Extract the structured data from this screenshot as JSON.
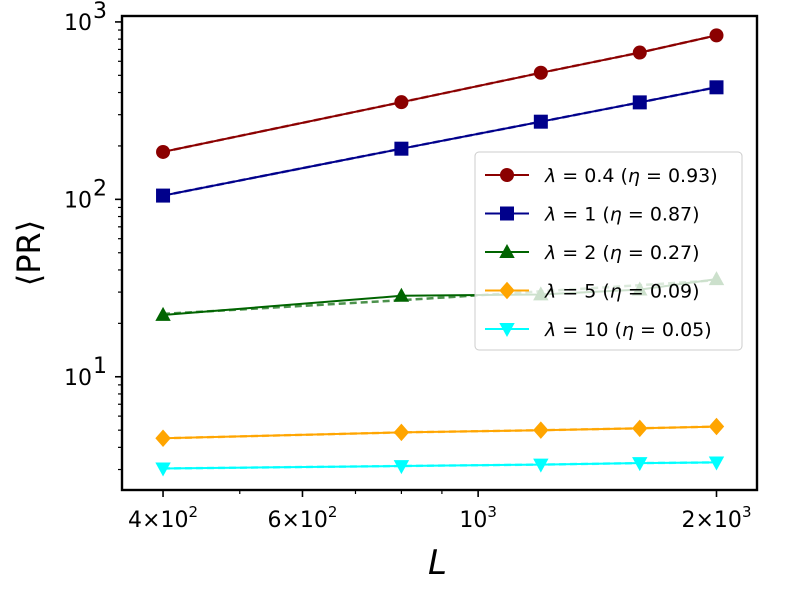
{
  "chart_data": {
    "type": "line",
    "xscale": "log",
    "yscale": "log",
    "xlabel": "L",
    "ylabel": "⟨PR⟩",
    "xlim": [
      355,
      2250
    ],
    "ylim": [
      2.3,
      1080
    ],
    "x_ticks": [
      {
        "value": 400,
        "mant": "4",
        "exp": "2"
      },
      {
        "value": 600,
        "mant": "6",
        "exp": "2"
      },
      {
        "value": 1000,
        "mant": "",
        "exp": "3"
      },
      {
        "value": 2000,
        "mant": "2",
        "exp": "3"
      }
    ],
    "y_ticks": [
      {
        "value": 10,
        "exp": "1"
      },
      {
        "value": 100,
        "exp": "2"
      },
      {
        "value": 1000,
        "exp": "3"
      }
    ],
    "legend_position": "center-right",
    "series": [
      {
        "name": "λ = 0.4 (η = 0.93)",
        "lambda": "0.4",
        "eta": "0.93",
        "color": "#8b0000",
        "marker": "circle",
        "x": [
          400,
          800,
          1200,
          1600,
          2000
        ],
        "values": [
          185,
          353,
          517,
          672,
          840
        ],
        "fit": [
          185,
          353,
          517,
          672,
          840
        ]
      },
      {
        "name": "λ = 1 (η = 0.87)",
        "lambda": "1",
        "eta": "0.87",
        "color": "#00008b",
        "marker": "square",
        "x": [
          400,
          800,
          1200,
          1600,
          2000
        ],
        "values": [
          105,
          193,
          274,
          352,
          428
        ],
        "fit": [
          105,
          193,
          274,
          352,
          428
        ]
      },
      {
        "name": "λ = 2 (η = 0.27)",
        "lambda": "2",
        "eta": "0.27",
        "color": "#006400",
        "marker": "triangle-up",
        "x": [
          400,
          800,
          1200,
          1600,
          2000
        ],
        "values": [
          22.3,
          28.6,
          29.1,
          31.0,
          35.5
        ],
        "fit": [
          22.6,
          27.0,
          30.3,
          32.8,
          35.0
        ]
      },
      {
        "name": "λ = 5 (η = 0.09)",
        "lambda": "5",
        "eta": "0.09",
        "color": "#ffa500",
        "marker": "diamond",
        "x": [
          400,
          800,
          1200,
          1600,
          2000
        ],
        "values": [
          4.5,
          4.86,
          5.0,
          5.12,
          5.24
        ],
        "fit": [
          4.5,
          4.86,
          5.0,
          5.12,
          5.24
        ]
      },
      {
        "name": "λ = 10 (η = 0.05)",
        "lambda": "10",
        "eta": "0.05",
        "color": "#00ffff",
        "marker": "triangle-down",
        "x": [
          400,
          800,
          1200,
          1600,
          2000
        ],
        "values": [
          3.04,
          3.14,
          3.2,
          3.26,
          3.29
        ],
        "fit": [
          3.04,
          3.14,
          3.2,
          3.26,
          3.29
        ]
      }
    ]
  }
}
